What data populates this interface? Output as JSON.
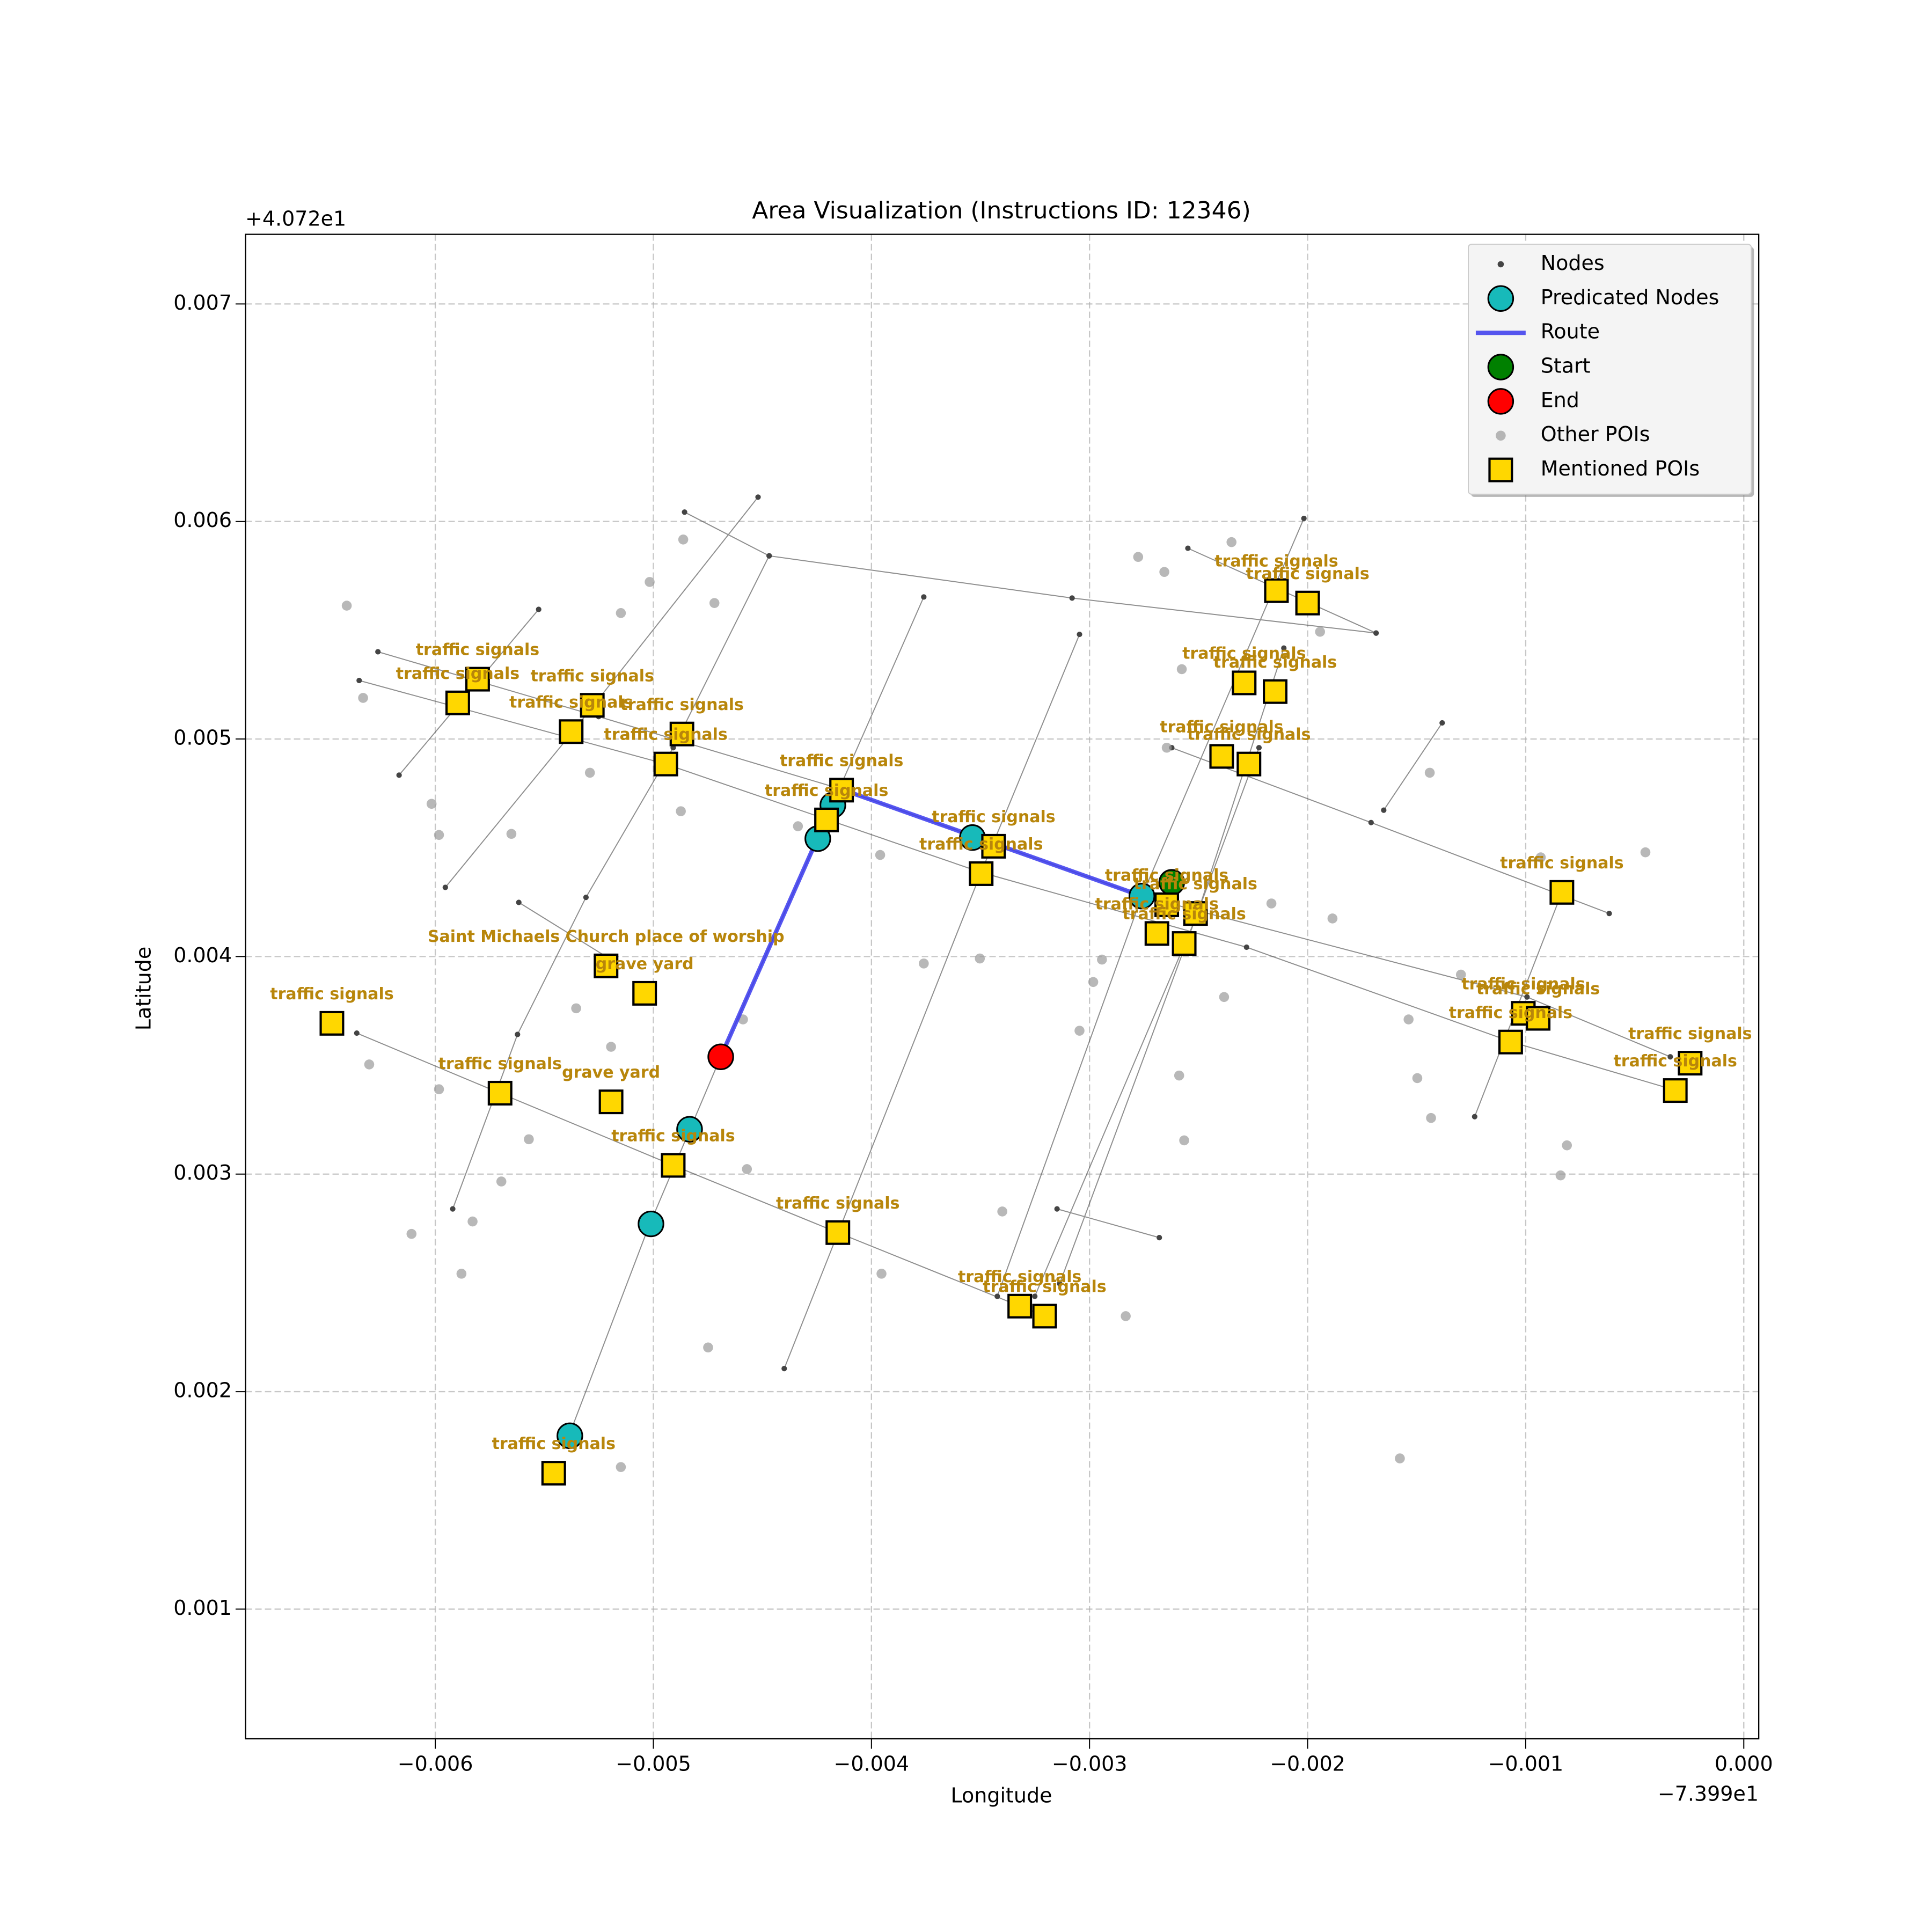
{
  "chart_data": {
    "type": "scatter",
    "title": "Area Visualization (Instructions ID: 12346)",
    "xlabel": "Longitude",
    "ylabel": "Latitude",
    "x_offset_label": "−7.399e1",
    "y_offset_label": "+4.072e1",
    "xlim": [
      -0.00687,
      6.86e-05
    ],
    "ylim": [
      0.000404,
      0.00732
    ],
    "xticks": [
      {
        "value": -0.006,
        "label": "−0.006"
      },
      {
        "value": -0.005,
        "label": "−0.005"
      },
      {
        "value": -0.004,
        "label": "−0.004"
      },
      {
        "value": -0.003,
        "label": "−0.003"
      },
      {
        "value": -0.002,
        "label": "−0.002"
      },
      {
        "value": -0.001,
        "label": "−0.001"
      },
      {
        "value": 0,
        "label": "0.000"
      }
    ],
    "yticks": [
      0.001,
      0.002,
      0.003,
      0.004,
      0.005,
      0.006,
      0.007
    ],
    "grid": true,
    "legend": "upper right",
    "series": [
      {
        "name": "Nodes",
        "marker": "dot-line",
        "color": "#444444",
        "x": [
          -0.004857,
          -0.004469,
          -0.00308,
          -0.001686,
          null,
          -0.006263,
          -0.005251,
          -0.004143,
          -0.00276,
          -0.000994,
          -0.000337,
          null,
          -0.006349,
          -0.004943,
          -0.003497,
          -0.00228,
          -0.001063,
          -0.000309,
          null,
          -0.002549,
          -0.001686,
          null,
          -0.002623,
          -0.001709,
          -0.000617,
          null,
          -0.00636,
          -0.005703,
          -0.004909,
          -0.004154,
          -0.003206,
          null,
          -0.005617,
          -0.005194,
          null,
          -0.003149,
          -0.00268,
          null,
          -0.006166,
          -0.005526,
          null,
          -0.005954,
          -0.005383,
          -0.00452,
          null,
          -0.00592,
          -0.005623,
          -0.005309,
          -0.004909,
          -0.004469,
          null,
          -0.005383,
          -0.005023,
          -0.004691,
          -0.004246,
          -0.00376,
          null,
          -0.0044,
          -0.003497,
          -0.003046,
          null,
          -0.003423,
          -0.00276,
          -0.002017,
          null,
          -0.003251,
          -0.002509,
          -0.002109,
          null,
          -0.003137,
          -0.002223,
          null,
          -0.001234,
          -0.000834,
          null,
          -0.001651,
          -0.001383
        ],
        "y": [
          0.006043,
          0.005842,
          0.005648,
          0.005487,
          null,
          0.005401,
          0.005103,
          0.004771,
          0.004278,
          0.003814,
          0.003539,
          null,
          0.005269,
          0.004885,
          0.004387,
          0.004043,
          0.003607,
          0.003384,
          null,
          0.005877,
          0.005487,
          null,
          0.00496,
          0.004616,
          0.004198,
          null,
          0.003648,
          0.003372,
          0.00304,
          0.002731,
          0.002347,
          null,
          0.004249,
          0.003986,
          null,
          0.00284,
          0.002708,
          null,
          0.004834,
          0.005596,
          null,
          0.004318,
          0.005017,
          0.006112,
          null,
          0.00284,
          0.003642,
          0.004272,
          0.00496,
          0.005842,
          null,
          0.001808,
          0.002754,
          0.003539,
          0.004547,
          0.005653,
          null,
          0.002106,
          0.004387,
          0.005481,
          null,
          0.002438,
          0.004278,
          0.006014,
          null,
          0.002438,
          0.004186,
          0.005418,
          null,
          0.002496,
          0.00496,
          null,
          0.003264,
          0.004295,
          null,
          0.004673,
          0.005074
        ]
      },
      {
        "name": "Predicated Nodes",
        "marker": "circle",
        "color": "#17baba",
        "x": [
          -0.005383,
          -0.005011,
          -0.004834,
          -0.004246,
          -0.004177,
          -0.003537,
          -0.00276
        ],
        "y": [
          0.001797,
          0.002771,
          0.003206,
          0.004542,
          0.004696,
          0.004547,
          0.004278
        ]
      },
      {
        "name": "Route",
        "marker": "line",
        "color": "#3a3aee",
        "x": [
          -0.004691,
          -0.004246,
          -0.004143,
          -0.00276
        ],
        "y": [
          0.003539,
          0.004547,
          0.004771,
          0.004278
        ]
      },
      {
        "name": "Start",
        "marker": "circle",
        "color": "#008000",
        "x": [
          -0.002623
        ],
        "y": [
          0.004341
        ]
      },
      {
        "name": "End",
        "marker": "circle",
        "color": "#ff0000",
        "x": [
          -0.004691
        ],
        "y": [
          0.003539
        ]
      },
      {
        "name": "Other POIs",
        "marker": "small-circle",
        "color": "#9a9a9a",
        "x": [
          -0.006406,
          -0.006331,
          -0.005983,
          -0.006017,
          -0.005983,
          -0.006303,
          -0.006109,
          -0.00588,
          -0.005829,
          -0.005697,
          -0.005571,
          -0.005651,
          -0.005354,
          -0.005194,
          -0.005149,
          -0.005291,
          -0.005149,
          -0.005017,
          -0.004863,
          -0.00472,
          -0.004874,
          -0.004749,
          -0.004571,
          -0.004589,
          -0.004337,
          -0.00396,
          -0.003954,
          -0.00376,
          -0.003503,
          -0.0034,
          -0.003046,
          -0.002983,
          -0.002943,
          -0.002834,
          -0.002777,
          -0.002657,
          -0.002577,
          -0.002646,
          -0.002589,
          -0.002566,
          -0.002383,
          -0.002349,
          -0.001943,
          -0.002166,
          -0.001886,
          -0.001537,
          -0.001497,
          -0.00144,
          -0.001434,
          -0.001577,
          -0.000931,
          -0.000451,
          -0.000811,
          -0.00084,
          -0.001297
        ],
        "y": [
          0.005613,
          0.005189,
          0.004559,
          0.004702,
          0.00339,
          0.003504,
          0.002725,
          0.002542,
          0.002782,
          0.002966,
          0.00316,
          0.004564,
          0.003762,
          0.003585,
          0.001653,
          0.004845,
          0.005579,
          0.005722,
          0.005917,
          0.005625,
          0.004668,
          0.002203,
          0.003023,
          0.003711,
          0.004599,
          0.004467,
          0.002542,
          0.003968,
          0.003991,
          0.002828,
          0.003659,
          0.003883,
          0.003986,
          0.002347,
          0.005837,
          0.005768,
          0.005321,
          0.00496,
          0.003453,
          0.003155,
          0.003814,
          0.005905,
          0.005493,
          0.004244,
          0.004175,
          0.003711,
          0.003441,
          0.004845,
          0.003258,
          0.001693,
          0.004456,
          0.004479,
          0.003132,
          0.002994,
          0.003917
        ]
      },
      {
        "name": "Mentioned POIs",
        "marker": "square",
        "color": "#ffd700",
        "label_color": "#b8860b",
        "x": [
          -0.005806,
          -0.005897,
          -0.00528,
          -0.005377,
          -0.004869,
          -0.004943,
          -0.004137,
          -0.004206,
          -0.00344,
          -0.003497,
          -0.002143,
          -0.002,
          -0.002291,
          -0.002149,
          -0.002394,
          -0.002269,
          -0.002646,
          -0.002514,
          -0.002691,
          -0.002566,
          -0.000834,
          -0.001011,
          -0.000943,
          -0.001069,
          -0.000246,
          -0.000314,
          -0.006474,
          -0.005703,
          -0.005217,
          -0.00504,
          -0.005194,
          -0.004909,
          -0.004154,
          -0.00332,
          -0.003206,
          -0.005457
        ],
        "y": [
          0.005275,
          0.005166,
          0.005155,
          0.005034,
          0.005023,
          0.004885,
          0.004765,
          0.004628,
          0.004507,
          0.004381,
          0.005682,
          0.005625,
          0.005258,
          0.005218,
          0.00492,
          0.004885,
          0.004238,
          0.004198,
          0.004106,
          0.00406,
          0.004295,
          0.003739,
          0.003716,
          0.003607,
          0.00351,
          0.003384,
          0.003693,
          0.003372,
          0.003957,
          0.003831,
          0.003332,
          0.00304,
          0.002731,
          0.002393,
          0.002347,
          0.001625
        ],
        "labels": [
          "traffic signals",
          "traffic signals",
          "traffic signals",
          "traffic signals",
          "traffic signals",
          "traffic signals",
          "traffic signals",
          "traffic signals",
          "traffic signals",
          "traffic signals",
          "traffic signals",
          "traffic signals",
          "traffic signals",
          "traffic signals",
          "traffic signals",
          "traffic signals",
          "traffic signals",
          "traffic signals",
          "traffic signals",
          "traffic signals",
          "traffic signals",
          "traffic signals",
          "traffic signals",
          "traffic signals",
          "traffic signals",
          "traffic signals",
          "traffic signals",
          "traffic signals",
          "Saint Michaels Church place of worship",
          "grave yard",
          "grave yard",
          "traffic signals",
          "traffic signals",
          "traffic signals",
          "traffic signals",
          "traffic signals"
        ]
      }
    ]
  }
}
